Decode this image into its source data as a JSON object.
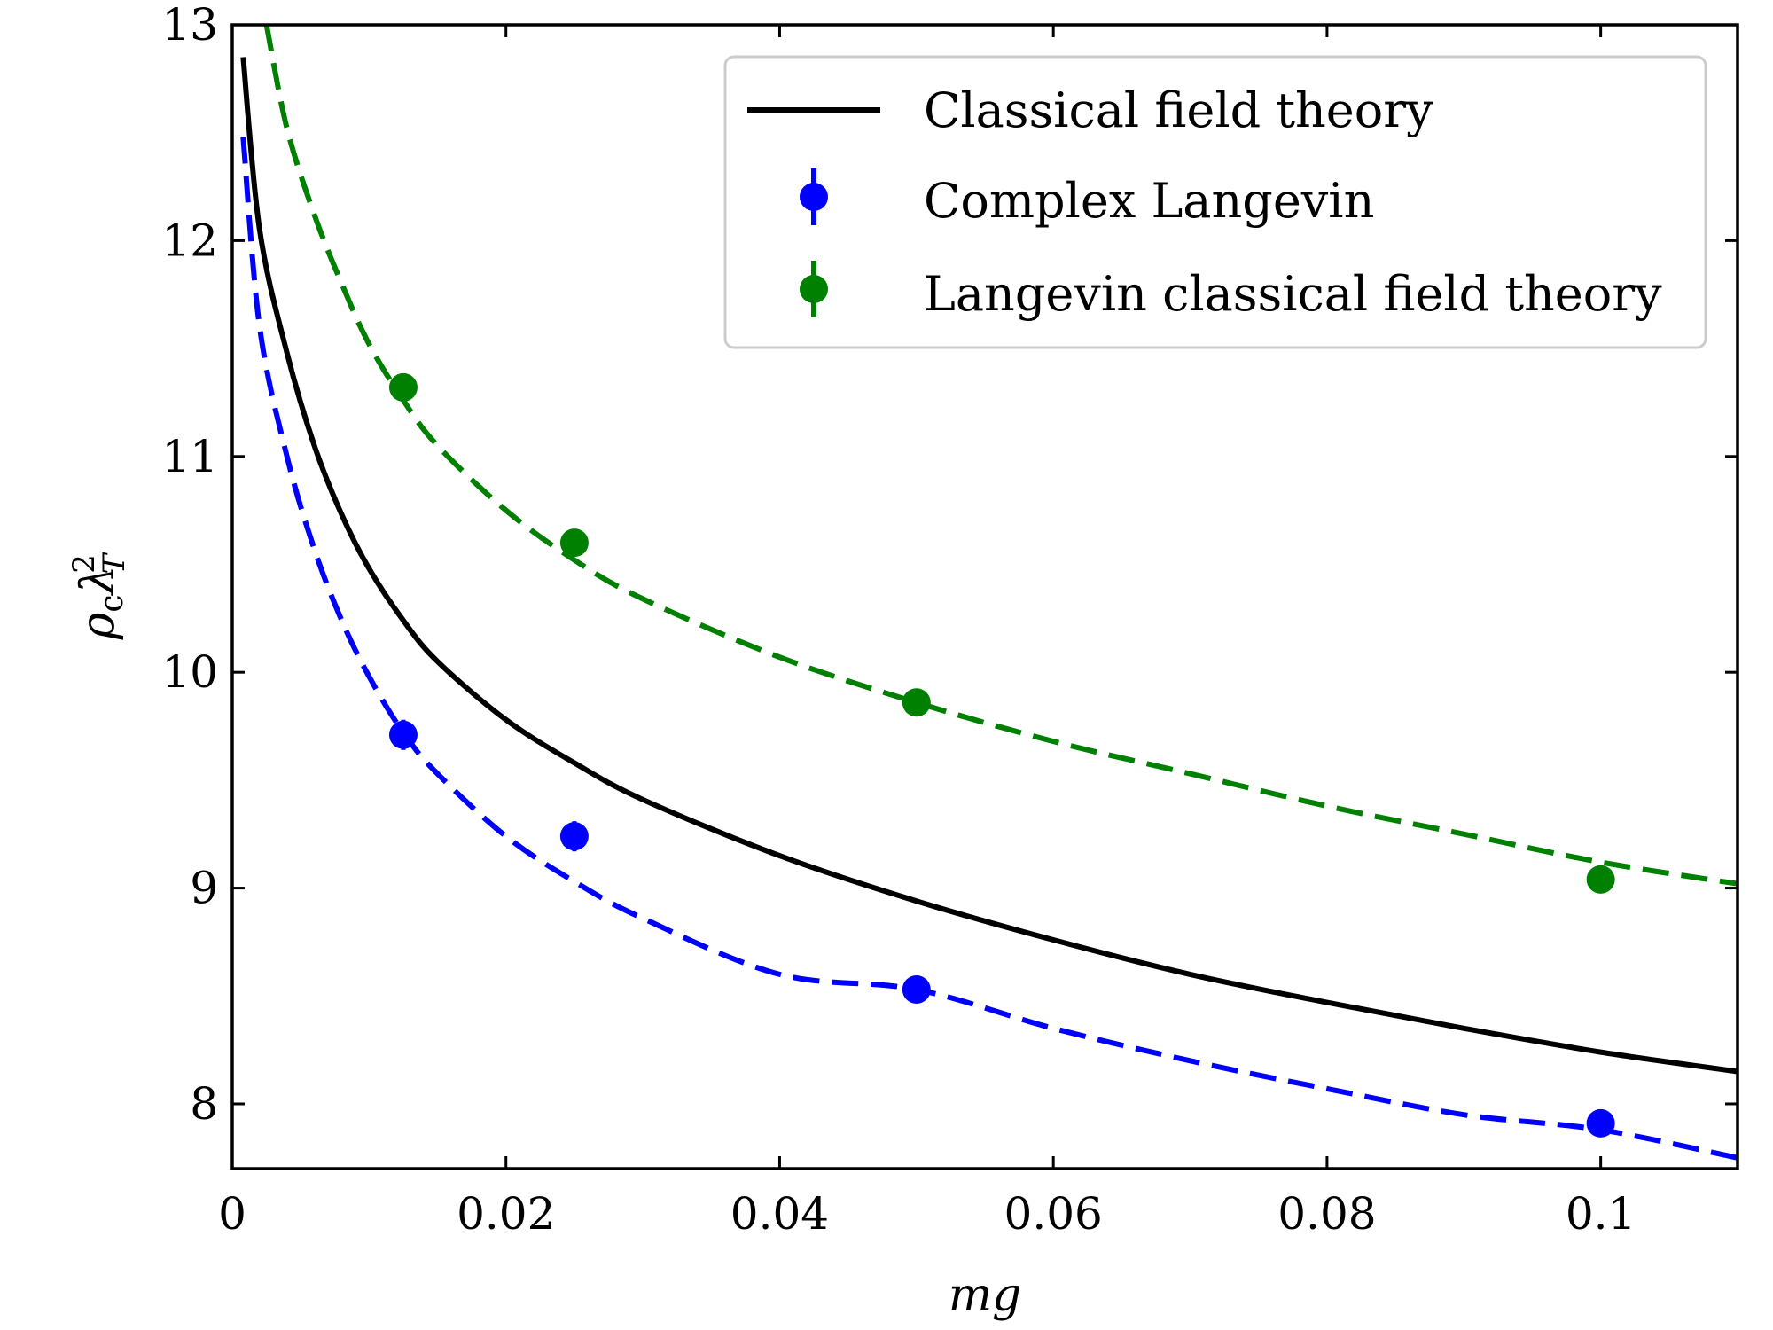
{
  "chart_data": {
    "type": "line",
    "title": "",
    "xlabel": "mg",
    "ylabel_main": "ρ",
    "ylabel_sub": "c",
    "ylabel_lambda": "λ",
    "ylabel_lambda_sub": "T",
    "ylabel_lambda_sup": "2",
    "xlim": [
      0,
      0.11
    ],
    "ylim": [
      7.7,
      13
    ],
    "x_ticks": [
      0,
      0.02,
      0.04,
      0.06,
      0.08,
      0.1
    ],
    "x_tick_labels": [
      "0",
      "0.02",
      "0.04",
      "0.06",
      "0.08",
      "0.1"
    ],
    "y_ticks": [
      8,
      9,
      10,
      11,
      12,
      13
    ],
    "y_tick_labels": [
      "8",
      "9",
      "10",
      "11",
      "12",
      "13"
    ],
    "legend_position": "top-right",
    "curves": [
      {
        "name": "Classical field theory",
        "style": "solid",
        "color": "#000000",
        "points": [
          [
            0.0008,
            12.85
          ],
          [
            0.002,
            12.05
          ],
          [
            0.004,
            11.48
          ],
          [
            0.006,
            11.05
          ],
          [
            0.008,
            10.73
          ],
          [
            0.01,
            10.48
          ],
          [
            0.0125,
            10.24
          ],
          [
            0.015,
            10.05
          ],
          [
            0.02,
            9.78
          ],
          [
            0.025,
            9.58
          ],
          [
            0.03,
            9.41
          ],
          [
            0.04,
            9.15
          ],
          [
            0.05,
            8.94
          ],
          [
            0.06,
            8.76
          ],
          [
            0.07,
            8.6
          ],
          [
            0.08,
            8.47
          ],
          [
            0.09,
            8.35
          ],
          [
            0.1,
            8.24
          ],
          [
            0.11,
            8.15
          ]
        ]
      },
      {
        "name": "Complex Langevin fit",
        "style": "dashed",
        "color": "#0000ff",
        "points": [
          [
            0.0008,
            12.48
          ],
          [
            0.002,
            11.6
          ],
          [
            0.004,
            11.0
          ],
          [
            0.006,
            10.57
          ],
          [
            0.008,
            10.24
          ],
          [
            0.01,
            9.98
          ],
          [
            0.0125,
            9.72
          ],
          [
            0.015,
            9.53
          ],
          [
            0.02,
            9.24
          ],
          [
            0.025,
            9.03
          ],
          [
            0.03,
            8.86
          ],
          [
            0.04,
            8.6
          ],
          [
            0.05,
            8.53
          ],
          [
            0.06,
            8.35
          ],
          [
            0.07,
            8.2
          ],
          [
            0.08,
            8.07
          ],
          [
            0.09,
            7.95
          ],
          [
            0.1,
            7.88
          ],
          [
            0.11,
            7.75
          ]
        ]
      },
      {
        "name": "Langevin classical field theory fit",
        "style": "dashed",
        "color": "#008000",
        "points": [
          [
            0.0025,
            13.0
          ],
          [
            0.004,
            12.52
          ],
          [
            0.006,
            12.12
          ],
          [
            0.008,
            11.8
          ],
          [
            0.01,
            11.52
          ],
          [
            0.0125,
            11.26
          ],
          [
            0.015,
            11.05
          ],
          [
            0.02,
            10.75
          ],
          [
            0.025,
            10.52
          ],
          [
            0.03,
            10.34
          ],
          [
            0.04,
            10.07
          ],
          [
            0.05,
            9.86
          ],
          [
            0.06,
            9.68
          ],
          [
            0.07,
            9.53
          ],
          [
            0.08,
            9.38
          ],
          [
            0.09,
            9.25
          ],
          [
            0.1,
            9.12
          ],
          [
            0.11,
            9.02
          ]
        ]
      }
    ],
    "series": [
      {
        "name": "Complex Langevin",
        "color": "#0000ff",
        "x": [
          0.0125,
          0.025,
          0.05,
          0.1
        ],
        "y": [
          9.71,
          9.24,
          8.53,
          7.91
        ],
        "yerr": [
          0.07,
          0.07,
          0.03,
          0.03
        ]
      },
      {
        "name": "Langevin classical field theory",
        "color": "#008000",
        "x": [
          0.0125,
          0.025,
          0.05,
          0.1
        ],
        "y": [
          11.32,
          10.6,
          9.86,
          9.04
        ],
        "yerr": [
          0.05,
          0.05,
          0.04,
          0.04
        ]
      }
    ],
    "legend": [
      {
        "label": "Classical field theory",
        "kind": "line",
        "color": "#000000"
      },
      {
        "label": "Complex Langevin",
        "kind": "errorbar",
        "color": "#0000ff"
      },
      {
        "label": "Langevin classical field theory",
        "kind": "errorbar",
        "color": "#008000"
      }
    ]
  }
}
